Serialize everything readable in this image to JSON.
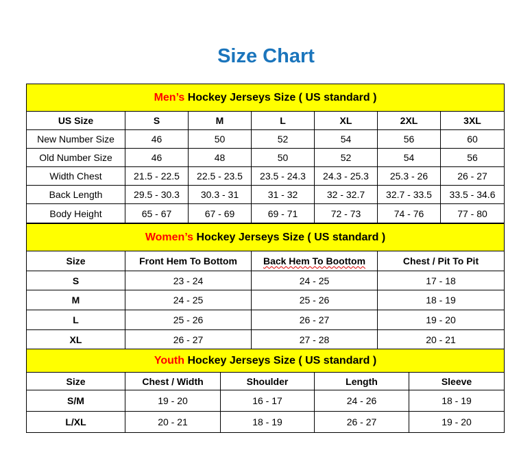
{
  "title": "Size Chart",
  "colors": {
    "title": "#1b75bc",
    "header_bg": "#ffff00",
    "accent_red": "#ff0000"
  },
  "men": {
    "header_accent": "Men’s",
    "header_rest": " Hockey Jerseys Size ( US standard )",
    "columns": [
      "US Size",
      "S",
      "M",
      "L",
      "XL",
      "2XL",
      "3XL"
    ],
    "rows": [
      [
        "New Number Size",
        "46",
        "50",
        "52",
        "54",
        "56",
        "60"
      ],
      [
        "Old Number Size",
        "46",
        "48",
        "50",
        "52",
        "54",
        "56"
      ],
      [
        "Width Chest",
        "21.5 - 22.5",
        "22.5 - 23.5",
        "23.5 - 24.3",
        "24.3 - 25.3",
        "25.3 - 26",
        "26 - 27"
      ],
      [
        "Back Length",
        "29.5 - 30.3",
        "30.3 - 31",
        "31 - 32",
        "32 - 32.7",
        "32.7 - 33.5",
        "33.5 - 34.6"
      ],
      [
        "Body Height",
        "65 - 67",
        "67 - 69",
        "69 - 71",
        "72 - 73",
        "74 - 76",
        "77 - 80"
      ]
    ]
  },
  "women": {
    "header_accent": "Women’s",
    "header_rest": " Hockey Jerseys Size ( US standard )",
    "columns": [
      "Size",
      "Front Hem To Bottom",
      "Back Hem To Boottom",
      "Chest / Pit To Pit"
    ],
    "rows": [
      [
        "S",
        "23 - 24",
        "24 - 25",
        "17 - 18"
      ],
      [
        "M",
        "24 - 25",
        "25 - 26",
        "18 - 19"
      ],
      [
        "L",
        "25 - 26",
        "26 - 27",
        "19 - 20"
      ],
      [
        "XL",
        "26 - 27",
        "27 - 28",
        "20 - 21"
      ]
    ]
  },
  "youth": {
    "header_accent": "Youth",
    "header_rest": " Hockey Jerseys Size ( US standard )",
    "columns": [
      "Size",
      "Chest / Width",
      "Shoulder",
      "Length",
      "Sleeve"
    ],
    "rows": [
      [
        "S/M",
        "19 - 20",
        "16 - 17",
        "24 - 26",
        "18 - 19"
      ],
      [
        "L/XL",
        "20 - 21",
        "18 - 19",
        "26 - 27",
        "19 - 20"
      ]
    ]
  }
}
